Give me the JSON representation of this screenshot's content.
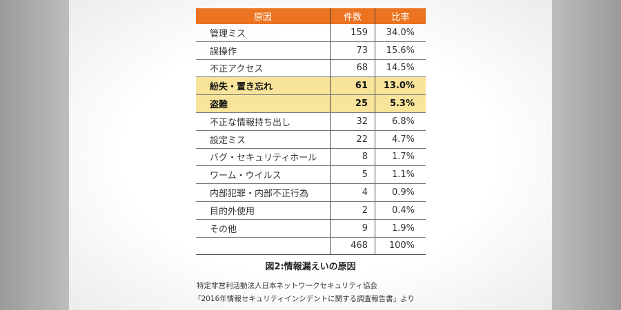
{
  "chart_data": {
    "type": "table",
    "title": "図2:情報漏えいの原因",
    "columns": [
      "原因",
      "件数",
      "比率"
    ],
    "rows": [
      {
        "cause": "管理ミス",
        "count": "159",
        "ratio": "34.0%",
        "highlight": false
      },
      {
        "cause": "誤操作",
        "count": "73",
        "ratio": "15.6%",
        "highlight": false
      },
      {
        "cause": "不正アクセス",
        "count": "68",
        "ratio": "14.5%",
        "highlight": false
      },
      {
        "cause": "紛失・置き忘れ",
        "count": "61",
        "ratio": "13.0%",
        "highlight": true
      },
      {
        "cause": "盗難",
        "count": "25",
        "ratio": "5.3%",
        "highlight": true
      },
      {
        "cause": "不正な情報持ち出し",
        "count": "32",
        "ratio": "6.8%",
        "highlight": false
      },
      {
        "cause": "設定ミス",
        "count": "22",
        "ratio": "4.7%",
        "highlight": false
      },
      {
        "cause": "バグ・セキュリティホール",
        "count": "8",
        "ratio": "1.7%",
        "highlight": false
      },
      {
        "cause": "ワーム・ウイルス",
        "count": "5",
        "ratio": "1.1%",
        "highlight": false
      },
      {
        "cause": "内部犯罪・内部不正行為",
        "count": "4",
        "ratio": "0.9%",
        "highlight": false
      },
      {
        "cause": "目的外使用",
        "count": "2",
        "ratio": "0.4%",
        "highlight": false
      },
      {
        "cause": "その他",
        "count": "9",
        "ratio": "1.9%",
        "highlight": false
      }
    ],
    "total": {
      "cause": "",
      "count": "468",
      "ratio": "100%"
    },
    "header_color": "#ec7421",
    "highlight_color": "#f8e49b"
  },
  "source": {
    "line1": "特定非営利活動法人日本ネットワークセキュリティ協会",
    "line2": "「2016年情報セキュリティインシデントに関する調査報告書」より"
  }
}
